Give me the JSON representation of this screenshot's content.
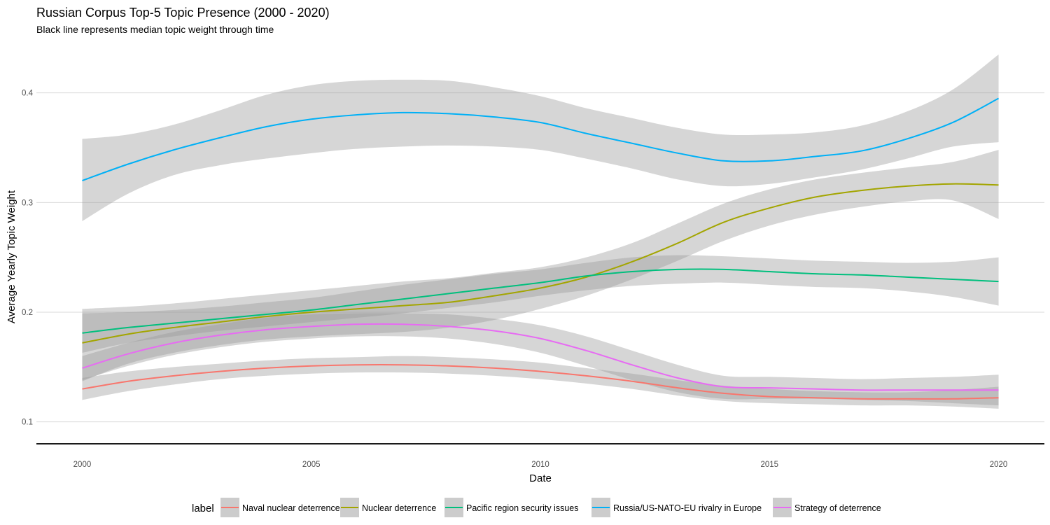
{
  "chart_data": {
    "type": "line",
    "title": "Russian Corpus Top-5 Topic Presence (2000 - 2020)",
    "subtitle": "Black line represents median topic weight through time",
    "xlabel": "Date",
    "ylabel": "Average Yearly Topic Weight",
    "xlim": [
      1999,
      2021
    ],
    "ylim": [
      0.08,
      0.44
    ],
    "x_ticks": [
      2000,
      2005,
      2010,
      2015,
      2020
    ],
    "y_ticks": [
      0.1,
      0.2,
      0.3,
      0.4
    ],
    "x_tick_labels": [
      "2000",
      "2005",
      "2010",
      "2015",
      "2020"
    ],
    "y_tick_labels": [
      "0.1",
      "0.2",
      "0.3",
      "0.4"
    ],
    "grid": true,
    "legend_title": "label",
    "legend_position": "bottom",
    "median_line": 0.08,
    "x": [
      2000,
      2001,
      2002,
      2003,
      2004,
      2005,
      2006,
      2007,
      2008,
      2009,
      2010,
      2011,
      2012,
      2013,
      2014,
      2015,
      2016,
      2017,
      2018,
      2019,
      2020
    ],
    "series": [
      {
        "name": "Naval nuclear deterrence",
        "color": "#F8766D",
        "values": [
          0.13,
          0.137,
          0.142,
          0.146,
          0.149,
          0.151,
          0.152,
          0.152,
          0.151,
          0.149,
          0.146,
          0.142,
          0.137,
          0.131,
          0.126,
          0.123,
          0.122,
          0.121,
          0.121,
          0.121,
          0.122
        ],
        "lower": [
          0.12,
          0.128,
          0.134,
          0.139,
          0.142,
          0.144,
          0.145,
          0.145,
          0.144,
          0.142,
          0.139,
          0.135,
          0.13,
          0.124,
          0.119,
          0.117,
          0.116,
          0.115,
          0.115,
          0.114,
          0.112
        ],
        "upper": [
          0.14,
          0.146,
          0.15,
          0.153,
          0.156,
          0.158,
          0.159,
          0.16,
          0.159,
          0.157,
          0.154,
          0.149,
          0.144,
          0.138,
          0.133,
          0.13,
          0.128,
          0.127,
          0.127,
          0.129,
          0.132
        ]
      },
      {
        "name": "Nuclear deterrence",
        "color": "#A3A500",
        "values": [
          0.172,
          0.18,
          0.186,
          0.191,
          0.196,
          0.2,
          0.203,
          0.206,
          0.209,
          0.215,
          0.222,
          0.232,
          0.246,
          0.263,
          0.282,
          0.295,
          0.305,
          0.311,
          0.315,
          0.317,
          0.316
        ],
        "lower": [
          0.137,
          0.153,
          0.163,
          0.17,
          0.175,
          0.178,
          0.18,
          0.182,
          0.186,
          0.193,
          0.203,
          0.215,
          0.23,
          0.247,
          0.265,
          0.279,
          0.289,
          0.296,
          0.301,
          0.302,
          0.285
        ],
        "upper": [
          0.203,
          0.205,
          0.208,
          0.212,
          0.216,
          0.22,
          0.224,
          0.228,
          0.231,
          0.236,
          0.241,
          0.25,
          0.263,
          0.281,
          0.299,
          0.312,
          0.321,
          0.327,
          0.332,
          0.337,
          0.348
        ]
      },
      {
        "name": "Pacific region security issues",
        "color": "#00BF7D",
        "values": [
          0.181,
          0.186,
          0.19,
          0.194,
          0.198,
          0.202,
          0.207,
          0.212,
          0.217,
          0.222,
          0.227,
          0.233,
          0.237,
          0.239,
          0.239,
          0.237,
          0.235,
          0.234,
          0.232,
          0.23,
          0.228
        ],
        "lower": [
          0.163,
          0.172,
          0.178,
          0.183,
          0.187,
          0.191,
          0.195,
          0.199,
          0.204,
          0.209,
          0.215,
          0.22,
          0.224,
          0.226,
          0.227,
          0.225,
          0.223,
          0.222,
          0.219,
          0.214,
          0.206
        ],
        "upper": [
          0.199,
          0.2,
          0.202,
          0.205,
          0.209,
          0.213,
          0.219,
          0.225,
          0.23,
          0.235,
          0.239,
          0.245,
          0.25,
          0.252,
          0.251,
          0.249,
          0.247,
          0.246,
          0.245,
          0.246,
          0.25
        ]
      },
      {
        "name": "Russia/US-NATO-EU rivalry in Europe",
        "color": "#00B0F6",
        "values": [
          0.32,
          0.335,
          0.348,
          0.359,
          0.369,
          0.376,
          0.38,
          0.382,
          0.381,
          0.378,
          0.373,
          0.363,
          0.354,
          0.345,
          0.338,
          0.338,
          0.342,
          0.347,
          0.358,
          0.373,
          0.395
        ],
        "lower": [
          0.283,
          0.308,
          0.325,
          0.334,
          0.34,
          0.345,
          0.349,
          0.351,
          0.352,
          0.351,
          0.348,
          0.34,
          0.331,
          0.321,
          0.315,
          0.317,
          0.323,
          0.33,
          0.34,
          0.351,
          0.355
        ],
        "upper": [
          0.358,
          0.362,
          0.371,
          0.384,
          0.398,
          0.407,
          0.411,
          0.412,
          0.411,
          0.405,
          0.397,
          0.386,
          0.377,
          0.368,
          0.362,
          0.362,
          0.364,
          0.37,
          0.383,
          0.403,
          0.435
        ]
      },
      {
        "name": "Strategy of deterrence",
        "color": "#E76BF3",
        "values": [
          0.149,
          0.162,
          0.172,
          0.179,
          0.184,
          0.187,
          0.189,
          0.189,
          0.187,
          0.183,
          0.176,
          0.165,
          0.152,
          0.14,
          0.132,
          0.131,
          0.13,
          0.129,
          0.129,
          0.129,
          0.129
        ],
        "lower": [
          0.138,
          0.151,
          0.161,
          0.168,
          0.173,
          0.176,
          0.178,
          0.178,
          0.176,
          0.171,
          0.163,
          0.151,
          0.138,
          0.127,
          0.121,
          0.121,
          0.121,
          0.12,
          0.119,
          0.117,
          0.115
        ],
        "upper": [
          0.16,
          0.172,
          0.182,
          0.189,
          0.195,
          0.198,
          0.199,
          0.199,
          0.198,
          0.194,
          0.188,
          0.178,
          0.165,
          0.152,
          0.142,
          0.141,
          0.14,
          0.139,
          0.14,
          0.141,
          0.143
        ]
      }
    ]
  }
}
